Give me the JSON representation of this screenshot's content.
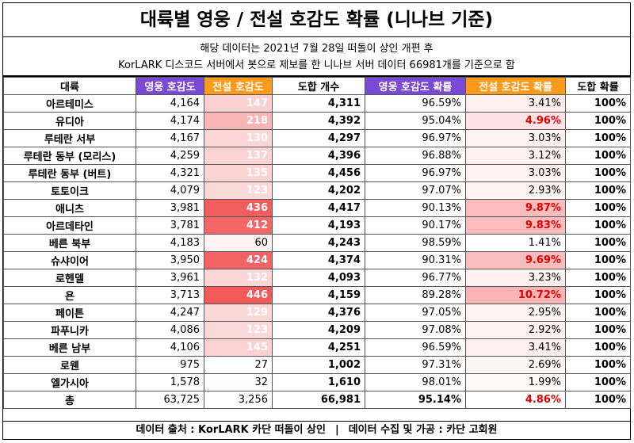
{
  "title": "대륙별 영웅 / 전설 호감도 확률 (니나브 기준)",
  "subtitle_line1": "해당 데이터는 2021년 7월 28일 떠돌이 상인 개편 후",
  "subtitle_line2": "KorLARK 디스코드 서버에서 봇으로 제보를 한 니나브 서버 데이터 66981개를 기준으로 함",
  "headers": [
    "대륙",
    "영웅 호감도",
    "전설 호감도",
    "도합 개수",
    "영웅 호감도 확률",
    "전설 호감도 확률",
    "도합 확률"
  ],
  "colors": {
    "hero_header": "#7b4ad4",
    "legend_header": "#ff9a1a",
    "heat_low": "#ffffff",
    "heat_high": "#f25a5a",
    "highlight_text": "#e00000"
  },
  "rows": [
    {
      "name": "아르테미스",
      "hero": "4,164",
      "legend": "147",
      "total": "4,311",
      "hero_pct": "96.59%",
      "legend_pct": "3.41%",
      "sum_pct": "100%"
    },
    {
      "name": "유디아",
      "hero": "4,174",
      "legend": "218",
      "total": "4,392",
      "hero_pct": "95.04%",
      "legend_pct": "4.96%",
      "sum_pct": "100%"
    },
    {
      "name": "루테란 서부",
      "hero": "4,167",
      "legend": "130",
      "total": "4,297",
      "hero_pct": "96.97%",
      "legend_pct": "3.03%",
      "sum_pct": "100%"
    },
    {
      "name": "루테란 동부 (모리스)",
      "hero": "4,259",
      "legend": "137",
      "total": "4,396",
      "hero_pct": "96.88%",
      "legend_pct": "3.12%",
      "sum_pct": "100%"
    },
    {
      "name": "루테란 동부 (버트)",
      "hero": "4,321",
      "legend": "135",
      "total": "4,456",
      "hero_pct": "96.97%",
      "legend_pct": "3.03%",
      "sum_pct": "100%"
    },
    {
      "name": "토토이크",
      "hero": "4,079",
      "legend": "123",
      "total": "4,202",
      "hero_pct": "97.07%",
      "legend_pct": "2.93%",
      "sum_pct": "100%"
    },
    {
      "name": "애니츠",
      "hero": "3,981",
      "legend": "436",
      "total": "4,417",
      "hero_pct": "90.13%",
      "legend_pct": "9.87%",
      "sum_pct": "100%"
    },
    {
      "name": "아르데타인",
      "hero": "3,781",
      "legend": "412",
      "total": "4,193",
      "hero_pct": "90.17%",
      "legend_pct": "9.83%",
      "sum_pct": "100%"
    },
    {
      "name": "베른 북부",
      "hero": "4,183",
      "legend": "60",
      "total": "4,243",
      "hero_pct": "98.59%",
      "legend_pct": "1.41%",
      "sum_pct": "100%"
    },
    {
      "name": "슈샤이어",
      "hero": "3,950",
      "legend": "424",
      "total": "4,374",
      "hero_pct": "90.31%",
      "legend_pct": "9.69%",
      "sum_pct": "100%"
    },
    {
      "name": "로헨델",
      "hero": "3,961",
      "legend": "132",
      "total": "4,093",
      "hero_pct": "96.77%",
      "legend_pct": "3.23%",
      "sum_pct": "100%"
    },
    {
      "name": "욘",
      "hero": "3,713",
      "legend": "446",
      "total": "4,159",
      "hero_pct": "89.28%",
      "legend_pct": "10.72%",
      "sum_pct": "100%"
    },
    {
      "name": "페이튼",
      "hero": "4,247",
      "legend": "129",
      "total": "4,376",
      "hero_pct": "97.05%",
      "legend_pct": "2.95%",
      "sum_pct": "100%"
    },
    {
      "name": "파푸니카",
      "hero": "4,086",
      "legend": "123",
      "total": "4,209",
      "hero_pct": "97.08%",
      "legend_pct": "2.92%",
      "sum_pct": "100%"
    },
    {
      "name": "베른 남부",
      "hero": "4,106",
      "legend": "145",
      "total": "4,251",
      "hero_pct": "96.59%",
      "legend_pct": "3.41%",
      "sum_pct": "100%"
    },
    {
      "name": "로웬",
      "hero": "975",
      "legend": "27",
      "total": "1,002",
      "hero_pct": "97.31%",
      "legend_pct": "2.69%",
      "sum_pct": "100%"
    },
    {
      "name": "엘가시아",
      "hero": "1,578",
      "legend": "32",
      "total": "1,610",
      "hero_pct": "98.01%",
      "legend_pct": "1.99%",
      "sum_pct": "100%"
    }
  ],
  "total_row": {
    "name": "총",
    "hero": "63,725",
    "legend": "3,256",
    "total": "66,981",
    "hero_pct": "95.14%",
    "legend_pct": "4.86%",
    "sum_pct": "100%"
  },
  "footer": {
    "source": "데이터 출처 : KorLARK 카단 떠돌이 상인",
    "separator": "|",
    "collector": "데이터 수집 및 가공 : 카단 고회원"
  }
}
